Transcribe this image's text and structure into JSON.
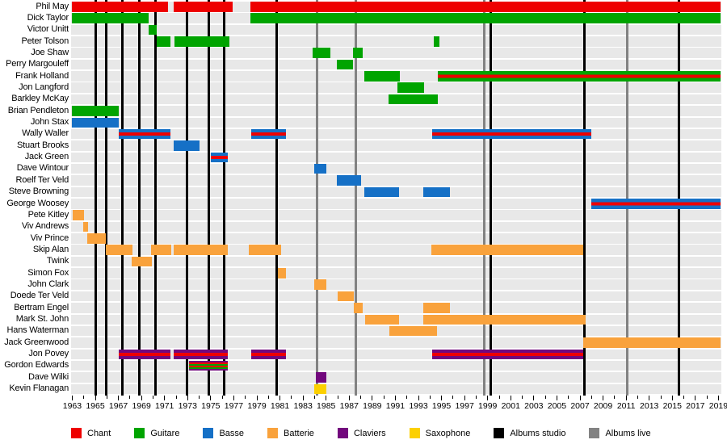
{
  "colors": {
    "chant": "#ee0000",
    "guitare": "#00a400",
    "basse": "#1570c6",
    "batterie": "#f9a23c",
    "claviers": "#72077d",
    "saxophone": "#fcd000",
    "albums_studio": "#000000",
    "albums_live": "#828282",
    "row_band": "#e8e8e8"
  },
  "legend": [
    {
      "key": "chant",
      "label": "Chant"
    },
    {
      "key": "guitare",
      "label": "Guitare"
    },
    {
      "key": "basse",
      "label": "Basse"
    },
    {
      "key": "batterie",
      "label": "Batterie"
    },
    {
      "key": "claviers",
      "label": "Claviers"
    },
    {
      "key": "saxophone",
      "label": "Saxophone"
    },
    {
      "key": "albums_studio",
      "label": "Albums studio"
    },
    {
      "key": "albums_live",
      "label": "Albums live"
    }
  ],
  "chart_data": {
    "type": "timeline",
    "x_axis": {
      "start": 1962.9,
      "end": 2019.25,
      "minor_tick_step": 1,
      "tick_label_years": [
        1963,
        1965,
        1967,
        1969,
        1971,
        1973,
        1975,
        1977,
        1979,
        1981,
        1983,
        1985,
        1987,
        1989,
        1991,
        1993,
        1995,
        1997,
        1999,
        2001,
        2003,
        2005,
        2007,
        2009,
        2011,
        2013,
        2015,
        2017,
        2019
      ]
    },
    "event_lines": {
      "studio_years": [
        1965.0,
        1965.95,
        1967.35,
        1968.8,
        1970.2,
        1972.95,
        1974.8,
        1976.15,
        1980.7,
        1999.25,
        2007.4,
        2015.6
      ],
      "live_years": [
        1984.2,
        1987.6,
        1998.7,
        2011.1
      ]
    },
    "rows": [
      {
        "name": "Phil May",
        "segments": [
          {
            "from": 1963.0,
            "to": 1971.3,
            "stripes": [
              "chant"
            ]
          },
          {
            "from": 1971.8,
            "to": 1976.9,
            "stripes": [
              "chant"
            ]
          },
          {
            "from": 1978.45,
            "to": 2019.15,
            "stripes": [
              "chant"
            ]
          }
        ]
      },
      {
        "name": "Dick Taylor",
        "segments": [
          {
            "from": 1963.0,
            "to": 1969.65,
            "stripes": [
              "guitare"
            ]
          },
          {
            "from": 1978.45,
            "to": 2019.15,
            "stripes": [
              "guitare"
            ]
          }
        ]
      },
      {
        "name": "Victor Unitt",
        "segments": [
          {
            "from": 1969.6,
            "to": 1970.3,
            "stripes": [
              "guitare"
            ]
          }
        ]
      },
      {
        "name": "Peter Tolson",
        "segments": [
          {
            "from": 1970.35,
            "to": 1971.5,
            "stripes": [
              "guitare"
            ]
          },
          {
            "from": 1971.85,
            "to": 1976.6,
            "stripes": [
              "guitare"
            ]
          },
          {
            "from": 1994.3,
            "to": 1994.8,
            "stripes": [
              "guitare"
            ]
          }
        ]
      },
      {
        "name": "Joe Shaw",
        "segments": [
          {
            "from": 1983.85,
            "to": 1985.4,
            "stripes": [
              "guitare"
            ]
          },
          {
            "from": 1987.3,
            "to": 1988.15,
            "stripes": [
              "guitare"
            ]
          }
        ]
      },
      {
        "name": "Perry Margouleff",
        "segments": [
          {
            "from": 1985.9,
            "to": 1987.3,
            "stripes": [
              "guitare"
            ]
          }
        ]
      },
      {
        "name": "Frank Holland",
        "segments": [
          {
            "from": 1988.3,
            "to": 1991.4,
            "stripes": [
              "guitare"
            ]
          },
          {
            "from": 1994.7,
            "to": 2019.15,
            "stripes": [
              "guitare",
              "chant",
              "guitare"
            ]
          }
        ]
      },
      {
        "name": "Jon Langford",
        "segments": [
          {
            "from": 1991.2,
            "to": 1993.5,
            "stripes": [
              "guitare"
            ]
          }
        ]
      },
      {
        "name": "Barkley McKay",
        "segments": [
          {
            "from": 1990.4,
            "to": 1994.7,
            "stripes": [
              "guitare"
            ]
          }
        ]
      },
      {
        "name": "Brian Pendleton",
        "segments": [
          {
            "from": 1963.0,
            "to": 1967.0,
            "stripes": [
              "guitare"
            ]
          }
        ]
      },
      {
        "name": "John Stax",
        "segments": [
          {
            "from": 1963.0,
            "to": 1967.05,
            "stripes": [
              "basse"
            ]
          }
        ]
      },
      {
        "name": "Wally Waller",
        "segments": [
          {
            "from": 1967.05,
            "to": 1971.5,
            "stripes": [
              "basse",
              "chant",
              "basse"
            ]
          },
          {
            "from": 1978.5,
            "to": 1981.55,
            "stripes": [
              "basse",
              "chant",
              "basse"
            ]
          },
          {
            "from": 1994.2,
            "to": 2008.0,
            "stripes": [
              "basse",
              "chant",
              "basse"
            ]
          }
        ]
      },
      {
        "name": "Stuart Brooks",
        "segments": [
          {
            "from": 1971.8,
            "to": 1974.0,
            "stripes": [
              "basse"
            ]
          }
        ]
      },
      {
        "name": "Jack Green",
        "segments": [
          {
            "from": 1975.0,
            "to": 1976.5,
            "stripes": [
              "basse",
              "chant",
              "basse"
            ]
          }
        ]
      },
      {
        "name": "Dave Wintour",
        "segments": [
          {
            "from": 1984.0,
            "to": 1985.05,
            "stripes": [
              "basse"
            ]
          }
        ]
      },
      {
        "name": "Roelf Ter Veld",
        "segments": [
          {
            "from": 1985.95,
            "to": 1988.0,
            "stripes": [
              "basse"
            ]
          }
        ]
      },
      {
        "name": "Steve Browning",
        "segments": [
          {
            "from": 1988.3,
            "to": 1991.35,
            "stripes": [
              "basse"
            ]
          },
          {
            "from": 1993.4,
            "to": 1995.75,
            "stripes": [
              "basse"
            ]
          }
        ]
      },
      {
        "name": "George Woosey",
        "segments": [
          {
            "from": 2008.0,
            "to": 2019.15,
            "stripes": [
              "basse",
              "chant",
              "basse"
            ]
          }
        ]
      },
      {
        "name": "Pete Kitley",
        "segments": [
          {
            "from": 1963.05,
            "to": 1964.0,
            "stripes": [
              "batterie"
            ]
          }
        ]
      },
      {
        "name": "Viv Andrews",
        "segments": [
          {
            "from": 1963.95,
            "to": 1964.4,
            "stripes": [
              "batterie"
            ]
          }
        ]
      },
      {
        "name": "Viv Prince",
        "segments": [
          {
            "from": 1964.3,
            "to": 1965.9,
            "stripes": [
              "batterie"
            ]
          }
        ]
      },
      {
        "name": "Skip Alan",
        "segments": [
          {
            "from": 1965.9,
            "to": 1968.25,
            "stripes": [
              "batterie"
            ]
          },
          {
            "from": 1969.85,
            "to": 1971.6,
            "stripes": [
              "batterie"
            ]
          },
          {
            "from": 1971.8,
            "to": 1976.5,
            "stripes": [
              "batterie"
            ]
          },
          {
            "from": 1978.3,
            "to": 1981.1,
            "stripes": [
              "batterie"
            ]
          },
          {
            "from": 1994.15,
            "to": 2007.3,
            "stripes": [
              "batterie"
            ]
          }
        ]
      },
      {
        "name": "Twink",
        "segments": [
          {
            "from": 1968.15,
            "to": 1969.9,
            "stripes": [
              "batterie"
            ]
          }
        ]
      },
      {
        "name": "Simon Fox",
        "segments": [
          {
            "from": 1980.85,
            "to": 1981.55,
            "stripes": [
              "batterie"
            ]
          }
        ]
      },
      {
        "name": "John Clark",
        "segments": [
          {
            "from": 1984.0,
            "to": 1985.05,
            "stripes": [
              "batterie"
            ]
          }
        ]
      },
      {
        "name": "Doede Ter Veld",
        "segments": [
          {
            "from": 1986.0,
            "to": 1987.4,
            "stripes": [
              "batterie"
            ]
          }
        ]
      },
      {
        "name": "Bertram Engel",
        "segments": [
          {
            "from": 1987.4,
            "to": 1988.2,
            "stripes": [
              "batterie"
            ]
          },
          {
            "from": 1993.4,
            "to": 1995.75,
            "stripes": [
              "batterie"
            ]
          }
        ]
      },
      {
        "name": "Mark St. John",
        "segments": [
          {
            "from": 1988.35,
            "to": 1991.35,
            "stripes": [
              "batterie"
            ]
          },
          {
            "from": 1993.45,
            "to": 2007.5,
            "stripes": [
              "batterie"
            ]
          }
        ]
      },
      {
        "name": "Hans Waterman",
        "segments": [
          {
            "from": 1990.5,
            "to": 1994.6,
            "stripes": [
              "batterie"
            ]
          }
        ]
      },
      {
        "name": "Jack Greenwood",
        "segments": [
          {
            "from": 2007.3,
            "to": 2019.15,
            "stripes": [
              "batterie"
            ]
          }
        ]
      },
      {
        "name": "Jon Povey",
        "segments": [
          {
            "from": 1967.0,
            "to": 1971.5,
            "stripes": [
              "claviers",
              "chant",
              "claviers"
            ]
          },
          {
            "from": 1971.8,
            "to": 1976.5,
            "stripes": [
              "claviers",
              "chant",
              "claviers"
            ]
          },
          {
            "from": 1978.5,
            "to": 1981.55,
            "stripes": [
              "claviers",
              "chant",
              "claviers"
            ]
          },
          {
            "from": 1994.2,
            "to": 2007.3,
            "stripes": [
              "claviers",
              "chant",
              "claviers"
            ]
          }
        ]
      },
      {
        "name": "Gordon Edwards",
        "segments": [
          {
            "from": 1973.15,
            "to": 1976.5,
            "stripes": [
              "claviers",
              "chant",
              "guitare",
              "chant",
              "guitare",
              "claviers"
            ]
          }
        ]
      },
      {
        "name": "Dave Wilki",
        "segments": [
          {
            "from": 1984.1,
            "to": 1985.05,
            "stripes": [
              "claviers"
            ]
          }
        ]
      },
      {
        "name": "Kevin Flanagan",
        "segments": [
          {
            "from": 1984.0,
            "to": 1985.05,
            "stripes": [
              "saxophone"
            ]
          }
        ]
      }
    ]
  }
}
